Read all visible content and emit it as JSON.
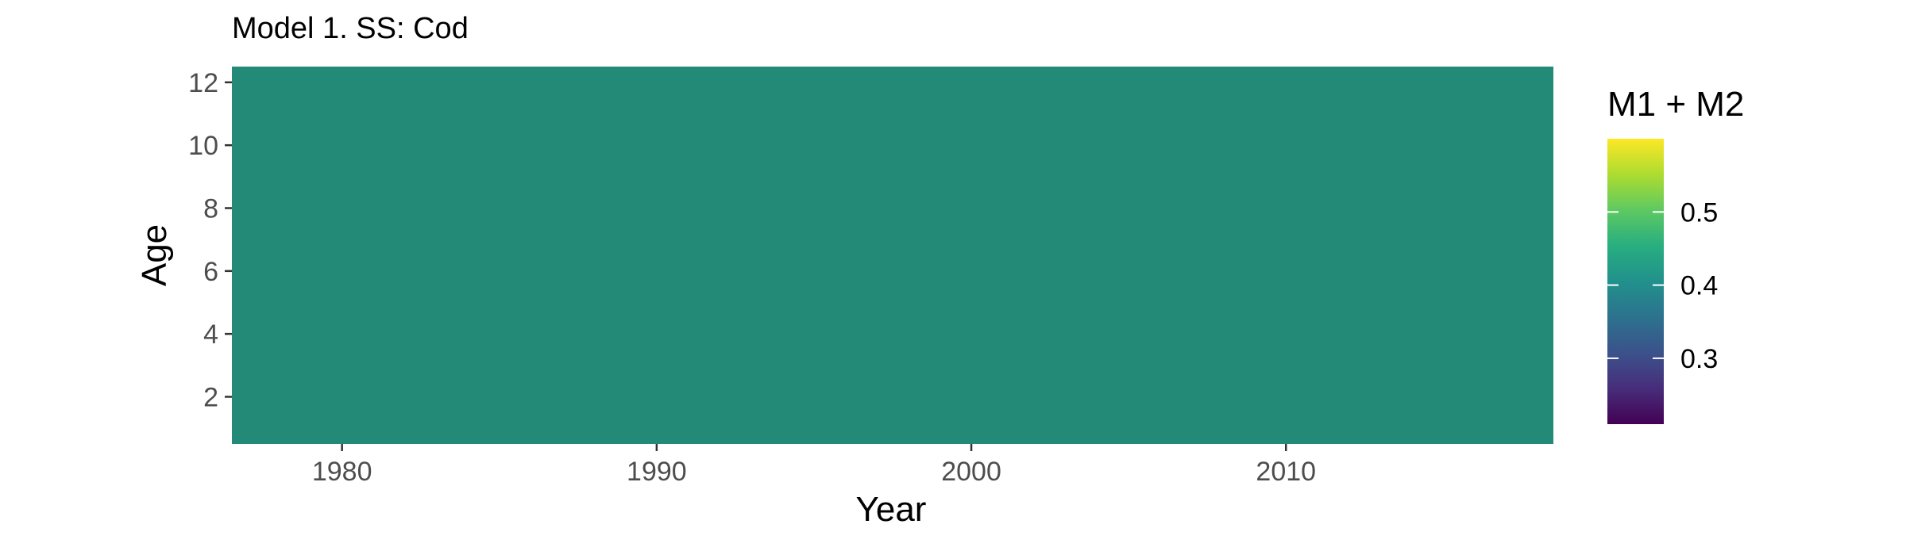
{
  "chart_data": {
    "type": "heatmap",
    "title": "Model 1. SS: Cod",
    "xlabel": "Year",
    "ylabel": "Age",
    "x_range": [
      1976.5,
      2018.5
    ],
    "y_range": [
      0.5,
      12.5
    ],
    "x_ticks": [
      1980,
      1990,
      2000,
      2010
    ],
    "y_ticks": [
      2,
      4,
      6,
      8,
      10,
      12
    ],
    "fill_value": 0.43,
    "fill_color": "#238A77",
    "legend": {
      "title": "M1 + M2",
      "placement": "right",
      "range": [
        0.21,
        0.6
      ],
      "ticks": [
        0.3,
        0.4,
        0.5
      ],
      "tick_labels": [
        "0.3",
        "0.4",
        "0.5"
      ],
      "colormap": "viridis"
    },
    "grid": false
  },
  "colors": {
    "tick_text": "#4D4D4D",
    "axis_title": "#000000",
    "tick_mark": "#333333"
  }
}
